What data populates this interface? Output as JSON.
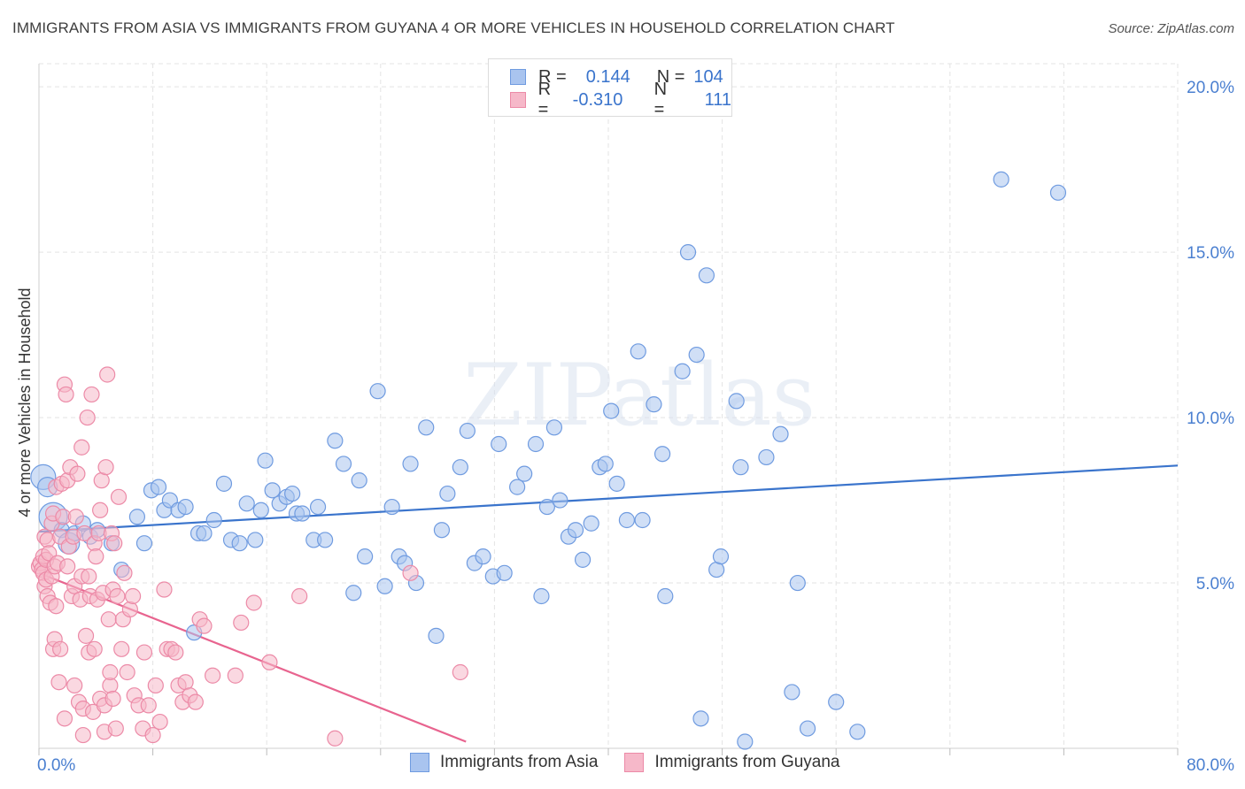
{
  "title": "IMMIGRANTS FROM ASIA VS IMMIGRANTS FROM GUYANA 4 OR MORE VEHICLES IN HOUSEHOLD CORRELATION CHART",
  "source": "Source: ZipAtlas.com",
  "watermark": "ZIPatlas",
  "colors": {
    "asia_fill": "#a9c4ef",
    "asia_stroke": "#6f9be0",
    "asia_line": "#3a74cc",
    "guyana_fill": "#f6b8c9",
    "guyana_stroke": "#ec8aa7",
    "guyana_line": "#e8648f",
    "tick_text": "#4a7fd0",
    "grid": "#e3e3e3"
  },
  "legend": {
    "rows": [
      {
        "r_label": "R =",
        "r_value": "0.144",
        "n_label": "N =",
        "n_value": "104"
      },
      {
        "r_label": "R =",
        "r_value": "-0.310",
        "n_label": "N =",
        "n_value": "111"
      }
    ]
  },
  "bottom_legend": [
    "Immigrants from Asia",
    "Immigrants from Guyana"
  ],
  "chart_data": {
    "type": "scatter",
    "ylabel": "4 or more Vehicles in Household",
    "xlabel": "",
    "x_ticks": [
      "0.0%",
      "80.0%"
    ],
    "y_ticks": [
      "5.0%",
      "10.0%",
      "15.0%",
      "20.0%"
    ],
    "xlim": [
      0,
      80
    ],
    "ylim": [
      0,
      20.7
    ],
    "grid": true,
    "legend_placement": "top-center",
    "series": [
      {
        "name": "Immigrants from Asia",
        "points": [
          [
            0.3,
            8.2
          ],
          [
            0.6,
            7.9
          ],
          [
            1.0,
            7.0
          ],
          [
            1.6,
            6.6
          ],
          [
            2.1,
            6.2
          ],
          [
            2.5,
            6.5
          ],
          [
            3.1,
            6.8
          ],
          [
            3.6,
            6.4
          ],
          [
            4.1,
            6.6
          ],
          [
            5.1,
            6.2
          ],
          [
            5.8,
            5.4
          ],
          [
            6.9,
            7.0
          ],
          [
            7.4,
            6.2
          ],
          [
            7.9,
            7.8
          ],
          [
            8.4,
            7.9
          ],
          [
            8.8,
            7.2
          ],
          [
            9.2,
            7.5
          ],
          [
            9.8,
            7.2
          ],
          [
            10.3,
            7.3
          ],
          [
            10.9,
            3.5
          ],
          [
            11.2,
            6.5
          ],
          [
            11.6,
            6.5
          ],
          [
            12.3,
            6.9
          ],
          [
            13.0,
            8.0
          ],
          [
            13.5,
            6.3
          ],
          [
            14.1,
            6.2
          ],
          [
            14.6,
            7.4
          ],
          [
            15.2,
            6.3
          ],
          [
            15.6,
            7.2
          ],
          [
            15.9,
            8.7
          ],
          [
            16.4,
            7.8
          ],
          [
            16.9,
            7.4
          ],
          [
            17.4,
            7.6
          ],
          [
            17.8,
            7.7
          ],
          [
            18.1,
            7.1
          ],
          [
            18.5,
            7.1
          ],
          [
            19.3,
            6.3
          ],
          [
            19.6,
            7.3
          ],
          [
            20.1,
            6.3
          ],
          [
            20.8,
            9.3
          ],
          [
            21.4,
            8.6
          ],
          [
            22.1,
            4.7
          ],
          [
            22.5,
            8.1
          ],
          [
            22.9,
            5.8
          ],
          [
            23.8,
            10.8
          ],
          [
            24.3,
            4.9
          ],
          [
            24.8,
            7.3
          ],
          [
            25.3,
            5.8
          ],
          [
            25.7,
            5.6
          ],
          [
            26.1,
            8.6
          ],
          [
            26.5,
            5.0
          ],
          [
            27.2,
            9.7
          ],
          [
            27.9,
            3.4
          ],
          [
            28.3,
            6.6
          ],
          [
            28.7,
            7.7
          ],
          [
            29.6,
            8.5
          ],
          [
            30.1,
            9.6
          ],
          [
            30.6,
            5.6
          ],
          [
            31.2,
            5.8
          ],
          [
            31.9,
            5.2
          ],
          [
            32.3,
            9.2
          ],
          [
            32.7,
            5.3
          ],
          [
            33.6,
            7.9
          ],
          [
            34.1,
            8.3
          ],
          [
            34.9,
            9.2
          ],
          [
            35.3,
            4.6
          ],
          [
            35.7,
            7.3
          ],
          [
            36.2,
            9.7
          ],
          [
            36.6,
            7.5
          ],
          [
            37.2,
            6.4
          ],
          [
            37.7,
            6.6
          ],
          [
            38.2,
            5.7
          ],
          [
            38.8,
            6.8
          ],
          [
            39.4,
            8.5
          ],
          [
            39.8,
            8.6
          ],
          [
            40.2,
            10.2
          ],
          [
            40.6,
            8.0
          ],
          [
            41.3,
            6.9
          ],
          [
            42.1,
            12.0
          ],
          [
            42.4,
            6.9
          ],
          [
            43.2,
            10.4
          ],
          [
            43.8,
            8.9
          ],
          [
            44.0,
            4.6
          ],
          [
            45.2,
            11.4
          ],
          [
            45.6,
            15.0
          ],
          [
            46.2,
            11.9
          ],
          [
            46.5,
            0.9
          ],
          [
            46.9,
            14.3
          ],
          [
            47.6,
            5.4
          ],
          [
            47.9,
            5.8
          ],
          [
            49.0,
            10.5
          ],
          [
            49.3,
            8.5
          ],
          [
            49.6,
            0.2
          ],
          [
            51.1,
            8.8
          ],
          [
            52.1,
            9.5
          ],
          [
            52.9,
            1.7
          ],
          [
            53.3,
            5.0
          ],
          [
            54.0,
            0.6
          ],
          [
            56.0,
            1.4
          ],
          [
            57.5,
            0.5
          ],
          [
            67.6,
            17.2
          ],
          [
            71.6,
            16.8
          ]
        ]
      },
      {
        "name": "Immigrants from Guyana",
        "points": [
          [
            0.0,
            5.5
          ],
          [
            0.1,
            5.6
          ],
          [
            0.2,
            5.4
          ],
          [
            0.3,
            5.8
          ],
          [
            0.3,
            5.3
          ],
          [
            0.4,
            6.4
          ],
          [
            0.4,
            4.9
          ],
          [
            0.5,
            5.7
          ],
          [
            0.5,
            5.1
          ],
          [
            0.6,
            6.3
          ],
          [
            0.6,
            4.6
          ],
          [
            0.7,
            5.9
          ],
          [
            0.8,
            4.4
          ],
          [
            0.9,
            6.8
          ],
          [
            0.9,
            5.2
          ],
          [
            1.0,
            7.1
          ],
          [
            1.0,
            3.0
          ],
          [
            1.1,
            3.3
          ],
          [
            1.1,
            5.5
          ],
          [
            1.2,
            7.9
          ],
          [
            1.2,
            4.3
          ],
          [
            1.3,
            5.6
          ],
          [
            1.4,
            2.0
          ],
          [
            1.5,
            6.4
          ],
          [
            1.5,
            3.0
          ],
          [
            1.6,
            8.0
          ],
          [
            1.7,
            7.0
          ],
          [
            1.8,
            0.9
          ],
          [
            1.8,
            11.0
          ],
          [
            1.9,
            10.7
          ],
          [
            2.0,
            8.1
          ],
          [
            2.0,
            5.5
          ],
          [
            2.1,
            6.1
          ],
          [
            2.2,
            8.5
          ],
          [
            2.3,
            4.6
          ],
          [
            2.4,
            6.4
          ],
          [
            2.5,
            1.9
          ],
          [
            2.5,
            4.9
          ],
          [
            2.6,
            7.0
          ],
          [
            2.7,
            8.3
          ],
          [
            2.8,
            1.4
          ],
          [
            2.9,
            4.5
          ],
          [
            3.0,
            9.1
          ],
          [
            3.0,
            5.2
          ],
          [
            3.1,
            0.4
          ],
          [
            3.1,
            1.2
          ],
          [
            3.2,
            6.5
          ],
          [
            3.3,
            3.4
          ],
          [
            3.4,
            10.0
          ],
          [
            3.5,
            5.2
          ],
          [
            3.5,
            2.9
          ],
          [
            3.6,
            4.6
          ],
          [
            3.7,
            10.7
          ],
          [
            3.8,
            1.1
          ],
          [
            3.9,
            3.0
          ],
          [
            3.9,
            6.2
          ],
          [
            4.0,
            5.8
          ],
          [
            4.1,
            4.5
          ],
          [
            4.2,
            6.5
          ],
          [
            4.3,
            1.5
          ],
          [
            4.3,
            7.2
          ],
          [
            4.4,
            8.1
          ],
          [
            4.5,
            4.7
          ],
          [
            4.6,
            1.3
          ],
          [
            4.6,
            0.5
          ],
          [
            4.7,
            8.5
          ],
          [
            4.8,
            11.3
          ],
          [
            4.9,
            3.9
          ],
          [
            5.0,
            1.9
          ],
          [
            5.0,
            2.3
          ],
          [
            5.1,
            6.5
          ],
          [
            5.2,
            4.8
          ],
          [
            5.2,
            1.5
          ],
          [
            5.3,
            6.2
          ],
          [
            5.4,
            0.6
          ],
          [
            5.5,
            4.6
          ],
          [
            5.6,
            7.6
          ],
          [
            5.8,
            3.0
          ],
          [
            5.9,
            3.9
          ],
          [
            6.0,
            5.3
          ],
          [
            6.2,
            2.3
          ],
          [
            6.4,
            4.2
          ],
          [
            6.6,
            4.6
          ],
          [
            6.7,
            1.6
          ],
          [
            7.0,
            1.3
          ],
          [
            7.3,
            0.6
          ],
          [
            7.4,
            2.9
          ],
          [
            7.7,
            1.3
          ],
          [
            8.0,
            0.4
          ],
          [
            8.2,
            1.9
          ],
          [
            8.5,
            0.8
          ],
          [
            8.8,
            4.8
          ],
          [
            9.0,
            3.0
          ],
          [
            9.3,
            3.0
          ],
          [
            9.6,
            2.9
          ],
          [
            9.8,
            1.9
          ],
          [
            10.1,
            1.4
          ],
          [
            10.3,
            2.0
          ],
          [
            10.6,
            1.6
          ],
          [
            11.0,
            1.4
          ],
          [
            11.3,
            3.9
          ],
          [
            11.6,
            3.7
          ],
          [
            12.2,
            2.2
          ],
          [
            13.8,
            2.2
          ],
          [
            14.2,
            3.8
          ],
          [
            15.1,
            4.4
          ],
          [
            16.2,
            2.6
          ],
          [
            18.3,
            4.6
          ],
          [
            20.8,
            0.3
          ],
          [
            26.1,
            5.3
          ],
          [
            29.6,
            2.3
          ]
        ]
      }
    ],
    "trend_lines": [
      {
        "series": "Immigrants from Asia",
        "x": [
          0,
          80
        ],
        "y": [
          6.55,
          8.55
        ]
      },
      {
        "series": "Immigrants from Guyana",
        "x": [
          0,
          30.0
        ],
        "y": [
          5.3,
          0.2
        ]
      }
    ]
  }
}
